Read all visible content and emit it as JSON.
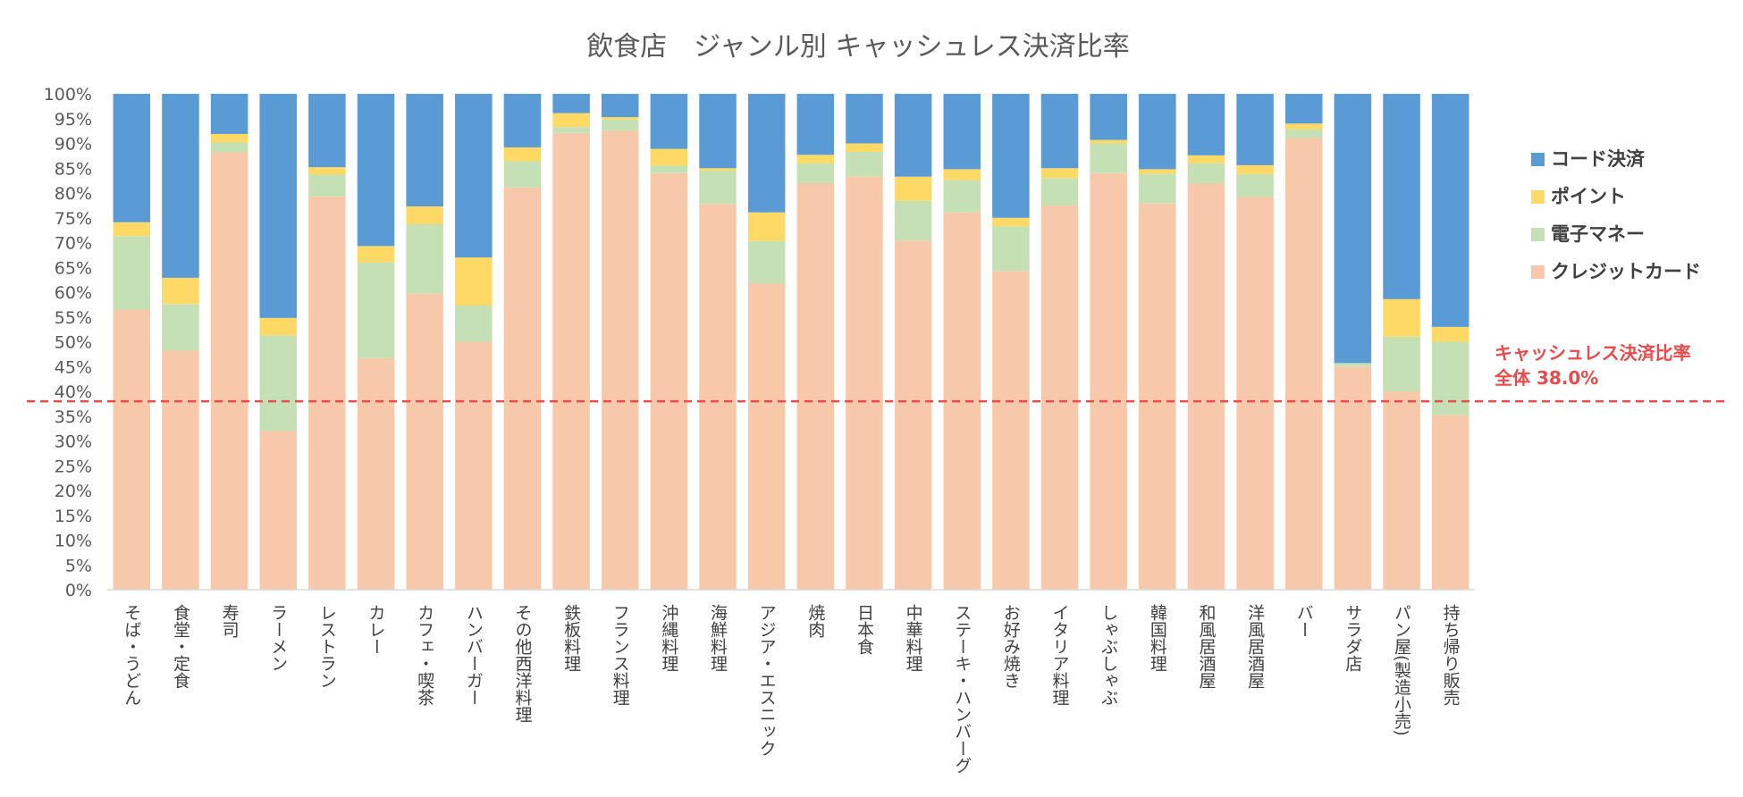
{
  "chart_data": {
    "type": "bar",
    "stacked": true,
    "title": "飲食店　ジャンル別 キャッシュレス決済比率",
    "xlabel": "",
    "ylabel": "",
    "ylim": [
      0,
      100
    ],
    "y_ticks": [
      "0%",
      "5%",
      "10%",
      "15%",
      "20%",
      "25%",
      "30%",
      "35%",
      "40%",
      "45%",
      "50%",
      "55%",
      "60%",
      "65%",
      "70%",
      "75%",
      "80%",
      "85%",
      "90%",
      "95%",
      "100%"
    ],
    "categories": [
      "そば・うどん",
      "食堂・定食",
      "寿司",
      "ラーメン",
      "レストラン",
      "カレー",
      "カフェ・喫茶",
      "ハンバーガー",
      "その他西洋料理",
      "鉄板料理",
      "フランス料理",
      "沖縄料理",
      "海鮮料理",
      "アジア・エスニック",
      "焼肉",
      "日本食",
      "中華料理",
      "ステーキ・ハンバーグ",
      "お好み焼き",
      "イタリア料理",
      "しゃぶしゃぶ",
      "韓国料理",
      "和風居酒屋",
      "洋風居酒屋",
      "バー",
      "サラダ店",
      "パン屋(製造小売)",
      "持ち帰り販売"
    ],
    "series": [
      {
        "name": "クレジットカード",
        "color": "#f7c9aa",
        "values": [
          56.5,
          48.2,
          88.2,
          32.0,
          79.3,
          46.7,
          59.7,
          50.0,
          81.1,
          92.1,
          92.5,
          84.0,
          77.8,
          61.8,
          82.0,
          83.3,
          70.4,
          76.1,
          64.3,
          77.5,
          84.0,
          77.9,
          82.0,
          79.2,
          91.1,
          45.0,
          40.0,
          35.2
        ]
      },
      {
        "name": "電子マネー",
        "color": "#c5e0b4",
        "values": [
          14.8,
          9.4,
          2.0,
          19.3,
          4.4,
          19.3,
          14.0,
          7.3,
          5.3,
          1.2,
          2.3,
          1.5,
          6.7,
          8.5,
          4.0,
          5.0,
          8.0,
          6.5,
          9.0,
          5.5,
          6.0,
          6.0,
          4.0,
          4.6,
          1.7,
          0.7,
          11.0,
          14.8
        ]
      },
      {
        "name": "ポイント",
        "color": "#ffd966",
        "values": [
          2.8,
          5.3,
          1.7,
          3.5,
          1.5,
          3.3,
          3.6,
          9.7,
          2.8,
          2.8,
          0.5,
          3.4,
          0.5,
          5.8,
          1.7,
          1.7,
          4.9,
          2.2,
          1.7,
          2.0,
          0.7,
          0.9,
          1.6,
          1.8,
          1.2,
          0.0,
          7.6,
          3.0
        ]
      },
      {
        "name": "コード決済",
        "color": "#5b9bd5",
        "values": [
          25.9,
          37.1,
          8.1,
          45.2,
          14.8,
          30.7,
          22.7,
          33.0,
          10.8,
          3.9,
          4.7,
          11.1,
          15.0,
          23.9,
          12.3,
          10.0,
          16.7,
          15.2,
          25.0,
          15.0,
          9.3,
          15.2,
          12.4,
          14.4,
          6.0,
          54.3,
          41.4,
          47.0
        ]
      }
    ],
    "legend": {
      "position": "right",
      "items": [
        "コード決済",
        "ポイント",
        "電子マネー",
        "クレジットカード"
      ]
    },
    "reference_line": {
      "value": 38.0,
      "color": "#e84b4b",
      "label_line1": "キャッシュレス決済比率",
      "label_line2": "全体 38.0%"
    }
  }
}
